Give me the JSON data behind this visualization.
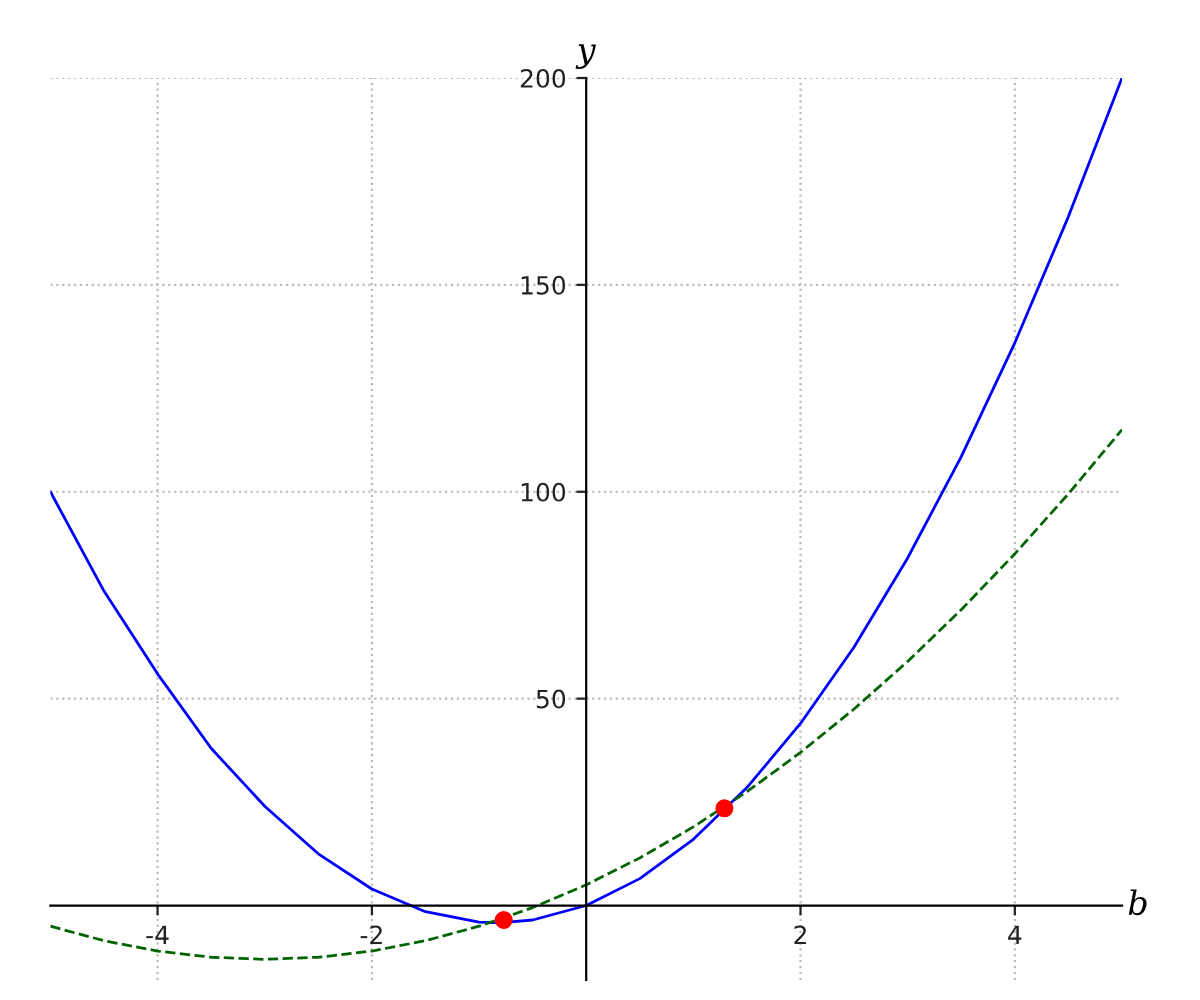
{
  "chart_data": {
    "type": "line",
    "xlabel": "b",
    "ylabel": "y",
    "xlim": [
      -5,
      5
    ],
    "ylim": [
      -18,
      200
    ],
    "xticks": [
      -4,
      -2,
      2,
      4
    ],
    "yticks": [
      50,
      100,
      150,
      200
    ],
    "grid": true,
    "legend": false,
    "series": [
      {
        "color": "#0000ff",
        "line_style": "solid",
        "x": [
          -5,
          -4.5,
          -4,
          -3.5,
          -3,
          -2.5,
          -2,
          -1.5,
          -1,
          -0.8,
          -0.5,
          0,
          0.5,
          1,
          1.5,
          2,
          2.5,
          3,
          3.5,
          4,
          4.5,
          5
        ],
        "values": [
          100,
          76,
          56,
          38,
          24,
          12.5,
          4,
          -1.5,
          -4,
          -4.2,
          -3.5,
          0,
          6.5,
          16,
          28.5,
          44,
          62.5,
          84,
          108.5,
          136,
          166.5,
          200
        ]
      },
      {
        "color": "#006400",
        "line_style": "dashed",
        "x": [
          -5,
          -4.5,
          -4,
          -3.5,
          -3,
          -2.5,
          -2,
          -1.5,
          -1,
          -0.5,
          0,
          0.5,
          1,
          1.5,
          2,
          2.5,
          3,
          3.5,
          4,
          4.5,
          5
        ],
        "values": [
          -5,
          -8.5,
          -11,
          -12.5,
          -13,
          -12.5,
          -11,
          -8.5,
          -5,
          -0.5,
          5,
          11.5,
          19,
          27.5,
          37,
          47.5,
          59,
          71.5,
          85,
          99.5,
          115
        ]
      },
      {
        "type": "scatter",
        "color": "#ff0000",
        "marker": "circle",
        "x": [
          -0.77,
          1.29
        ],
        "values": [
          -3.5,
          23.5
        ]
      }
    ]
  }
}
